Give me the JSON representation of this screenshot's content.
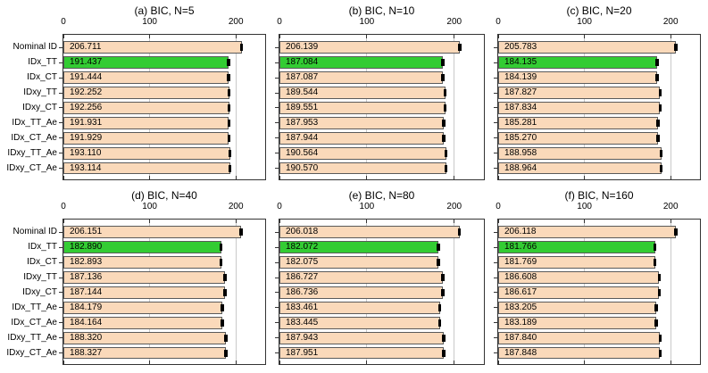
{
  "figure": {
    "colors": {
      "bar_fill": "#FAD9BA",
      "highlight_fill": "#33CC33",
      "bar_edge": "#5A5A5A",
      "grid": "#C9C9C9",
      "spine": "#333333",
      "tick": "#333333",
      "error_bar": "#000000",
      "text": "#000000"
    },
    "highlight_category": "IDx_TT"
  },
  "chart_data": [
    {
      "id": "a",
      "type": "bar",
      "orientation": "horizontal",
      "title": "(a) BIC, N=5",
      "xlim": [
        0,
        236
      ],
      "xticks": [
        0,
        100,
        200
      ],
      "grid_x": [
        100,
        200
      ],
      "categories": [
        "Nominal ID",
        "IDx_TT",
        "IDx_CT",
        "IDxy_TT",
        "IDxy_CT",
        "IDx_TT_Ae",
        "IDx_CT_Ae",
        "IDxy_TT_Ae",
        "IDxy_CT_Ae"
      ],
      "values": [
        206.711,
        191.437,
        191.444,
        192.252,
        192.256,
        191.931,
        191.929,
        193.11,
        193.114
      ],
      "value_labels": [
        "206.711",
        "191.437",
        "191.444",
        "192.252",
        "192.256",
        "191.931",
        "191.929",
        "193.110",
        "193.114"
      ],
      "highlight_index": 1,
      "show_ytick_labels": true
    },
    {
      "id": "b",
      "type": "bar",
      "orientation": "horizontal",
      "title": "(b) BIC, N=10",
      "xlim": [
        0,
        236
      ],
      "xticks": [
        0,
        100,
        200
      ],
      "grid_x": [
        100,
        200
      ],
      "categories": [
        "Nominal ID",
        "IDx_TT",
        "IDx_CT",
        "IDxy_TT",
        "IDxy_CT",
        "IDx_TT_Ae",
        "IDx_CT_Ae",
        "IDxy_TT_Ae",
        "IDxy_CT_Ae"
      ],
      "values": [
        206.139,
        187.084,
        187.087,
        189.544,
        189.551,
        187.953,
        187.944,
        190.564,
        190.57
      ],
      "value_labels": [
        "206.139",
        "187.084",
        "187.087",
        "189.544",
        "189.551",
        "187.953",
        "187.944",
        "190.564",
        "190.570"
      ],
      "highlight_index": 1,
      "show_ytick_labels": false
    },
    {
      "id": "c",
      "type": "bar",
      "orientation": "horizontal",
      "title": "(c) BIC, N=20",
      "xlim": [
        0,
        236
      ],
      "xticks": [
        0,
        100,
        200
      ],
      "grid_x": [
        100,
        200
      ],
      "categories": [
        "Nominal ID",
        "IDx_TT",
        "IDx_CT",
        "IDxy_TT",
        "IDxy_CT",
        "IDx_TT_Ae",
        "IDx_CT_Ae",
        "IDxy_TT_Ae",
        "IDxy_CT_Ae"
      ],
      "values": [
        205.783,
        184.135,
        184.139,
        187.827,
        187.834,
        185.281,
        185.27,
        188.958,
        188.964
      ],
      "value_labels": [
        "205.783",
        "184.135",
        "184.139",
        "187.827",
        "187.834",
        "185.281",
        "185.270",
        "188.958",
        "188.964"
      ],
      "highlight_index": 1,
      "show_ytick_labels": false
    },
    {
      "id": "d",
      "type": "bar",
      "orientation": "horizontal",
      "title": "(d) BIC, N=40",
      "xlim": [
        0,
        236
      ],
      "xticks": [
        0,
        100,
        200
      ],
      "grid_x": [
        100,
        200
      ],
      "categories": [
        "Nominal ID",
        "IDx_TT",
        "IDx_CT",
        "IDxy_TT",
        "IDxy_CT",
        "IDx_TT_Ae",
        "IDx_CT_Ae",
        "IDxy_TT_Ae",
        "IDxy_CT_Ae"
      ],
      "values": [
        206.151,
        182.89,
        182.893,
        187.136,
        187.144,
        184.179,
        184.164,
        188.32,
        188.327
      ],
      "value_labels": [
        "206.151",
        "182.890",
        "182.893",
        "187.136",
        "187.144",
        "184.179",
        "184.164",
        "188.320",
        "188.327"
      ],
      "highlight_index": 1,
      "show_ytick_labels": true
    },
    {
      "id": "e",
      "type": "bar",
      "orientation": "horizontal",
      "title": "(e) BIC, N=80",
      "xlim": [
        0,
        236
      ],
      "xticks": [
        0,
        100,
        200
      ],
      "grid_x": [
        100,
        200
      ],
      "categories": [
        "Nominal ID",
        "IDx_TT",
        "IDx_CT",
        "IDxy_TT",
        "IDxy_CT",
        "IDx_TT_Ae",
        "IDx_CT_Ae",
        "IDxy_TT_Ae",
        "IDxy_CT_Ae"
      ],
      "values": [
        206.018,
        182.072,
        182.075,
        186.727,
        186.736,
        183.461,
        183.445,
        187.943,
        187.951
      ],
      "value_labels": [
        "206.018",
        "182.072",
        "182.075",
        "186.727",
        "186.736",
        "183.461",
        "183.445",
        "187.943",
        "187.951"
      ],
      "highlight_index": 1,
      "show_ytick_labels": false
    },
    {
      "id": "f",
      "type": "bar",
      "orientation": "horizontal",
      "title": "(f) BIC, N=160",
      "xlim": [
        0,
        236
      ],
      "xticks": [
        0,
        100,
        200
      ],
      "grid_x": [
        100,
        200
      ],
      "categories": [
        "Nominal ID",
        "IDx_TT",
        "IDx_CT",
        "IDxy_TT",
        "IDxy_CT",
        "IDx_TT_Ae",
        "IDx_CT_Ae",
        "IDxy_TT_Ae",
        "IDxy_CT_Ae"
      ],
      "values": [
        206.118,
        181.766,
        181.769,
        186.608,
        186.617,
        183.205,
        183.189,
        187.84,
        187.848
      ],
      "value_labels": [
        "206.118",
        "181.766",
        "181.769",
        "186.608",
        "186.617",
        "183.205",
        "183.189",
        "187.840",
        "187.848"
      ],
      "highlight_index": 1,
      "show_ytick_labels": false
    }
  ]
}
